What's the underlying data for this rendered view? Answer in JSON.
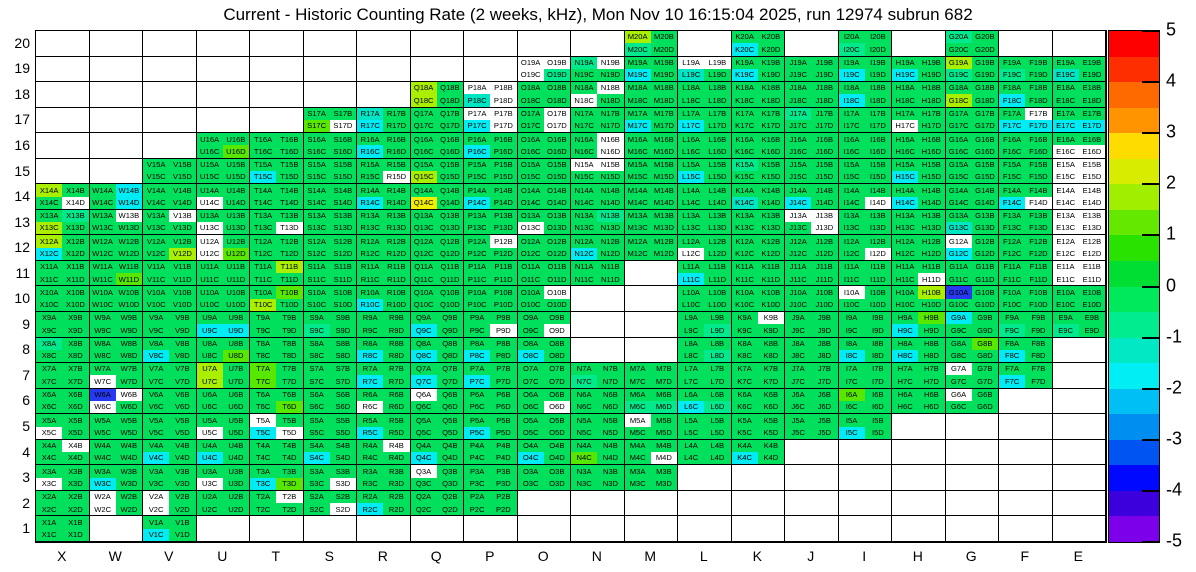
{
  "title": "Current - Historic Counting Rate (2 weeks, kHz), Mon Nov 10 16:15:04 2025, run 12974 subrun 682",
  "quarter_letters": [
    "A",
    "B",
    "C",
    "D"
  ],
  "palette": {
    "g": "#00e05c",
    "s": "#00e98c",
    "t": "#00e6c4",
    "c": "#00ecf4",
    "m": "#58e800",
    "l": "#aaee00",
    "y": "#f2ee00",
    "b": "#2638f0",
    "w": "#ffffff"
  },
  "palette_legend": {
    "g": "normal ~0 (green)",
    "s": "~-0.7 (spring green)",
    "t": "~-1.2 (teal)",
    "c": "~-1.7 (cyan)",
    "m": "~+1.2 (light green)",
    "l": "~+1.8 (yellow-green)",
    "y": "~+2.7 (yellow)",
    "b": "~-3.3 (blue)",
    "w": "no data (white)"
  },
  "colorbar": {
    "max": 5,
    "min": -5,
    "ticks": [
      5,
      4,
      3,
      2,
      1,
      0,
      -1,
      -2,
      -3,
      -4,
      -5
    ],
    "bands": [
      "#ff0000",
      "#ff2e00",
      "#ff6a00",
      "#ff9300",
      "#ffdc00",
      "#d8ec00",
      "#a2ee00",
      "#64e800",
      "#2ae200",
      "#00dd33",
      "#00e95c",
      "#00ec8e",
      "#00e9c4",
      "#00eef4",
      "#00bff2",
      "#008ff0",
      "#0054f2",
      "#0008ff",
      "#3c00dc",
      "#7d00ea"
    ]
  },
  "chart_data": {
    "type": "heatmap",
    "title": "Current - Historic Counting Rate (2 weeks, kHz)",
    "run_info": "Mon Nov 10 16:15:04 2025, run 12974 subrun 682",
    "xlabel": "",
    "ylabel": "",
    "columns": [
      "X",
      "W",
      "V",
      "U",
      "T",
      "S",
      "R",
      "Q",
      "P",
      "O",
      "N",
      "M",
      "L",
      "K",
      "J",
      "I",
      "H",
      "G",
      "F",
      "E"
    ],
    "rows": [
      20,
      19,
      18,
      17,
      16,
      15,
      14,
      13,
      12,
      11,
      10,
      9,
      8,
      7,
      6,
      5,
      4,
      3,
      2,
      1
    ],
    "cell_label_format": "column+row+quarterLetter, quarters A,B top row and C,D bottom row",
    "cells": [
      [
        "",
        "",
        "",
        "",
        "",
        "",
        "",
        "",
        "",
        "",
        "",
        "lgsg",
        "",
        "ggcg",
        "",
        "ggsg",
        "",
        "sggg",
        "",
        ""
      ],
      [
        "",
        "",
        "",
        "",
        "",
        "",
        "",
        "",
        "",
        "wwws",
        "swgg",
        "ggcg",
        "wwtg",
        "ggcg",
        "gggg",
        "ggcg",
        "ggcg",
        "lgsg",
        "ggsg",
        "ggtg"
      ],
      [
        "",
        "",
        "",
        "",
        "",
        "",
        "",
        "lglg",
        "wwtw",
        "gggg",
        "gwwg",
        "gggg",
        "gggg",
        "gggg",
        "gggg",
        "ggcg",
        "gggg",
        "gglg",
        "ggcg",
        "gggg"
      ],
      [
        "",
        "",
        "",
        "",
        "",
        "ggmw",
        "tgcg",
        "gggg",
        "wwcw",
        "gwgw",
        "gggg",
        "ggcg",
        "ggcg",
        "gggg",
        "sggg",
        "gggg",
        "ggwg",
        "gggg",
        "gwcc",
        "ggcc"
      ],
      [
        "",
        "",
        "",
        "gggm",
        "gggg",
        "gggg",
        "ggcg",
        "gggg",
        "ggcg",
        "gggg",
        "gwgw",
        "gggg",
        "gggg",
        "gggg",
        "gggg",
        "gggg",
        "gggg",
        "gggg",
        "gggg",
        "ggww"
      ],
      [
        "",
        "",
        "gggg",
        "gggg",
        "ggcg",
        "gggg",
        "gggw",
        "gglg",
        "gggg",
        "gggg",
        "wwgg",
        "gggg",
        "ggcg",
        "sggg",
        "gggg",
        "gggg",
        "ggcg",
        "gggg",
        "gggg",
        "wwww"
      ],
      [
        "lggw",
        "gcgc",
        "gggg",
        "ggwg",
        "gggg",
        "gggg",
        "ggcg",
        "ggyg",
        "ggcg",
        "gggg",
        "gggg",
        "gggg",
        "gggg",
        "ggtg",
        "ggcg",
        "gggw",
        "ggcg",
        "gggg",
        "ggcw",
        "wwww"
      ],
      [
        "gslg",
        "gwgg",
        "gwgg",
        "ggwg",
        "gggw",
        "gggg",
        "gggg",
        "gggg",
        "gggg",
        "ggwg",
        "gsgg",
        "gggg",
        "gggg",
        "gggg",
        "wwgw",
        "gggg",
        "gggg",
        "ggtg",
        "gggg",
        "wwww"
      ],
      [
        "lgcg",
        "gggg",
        "gggl",
        "wgwm",
        "gggg",
        "gggg",
        "gggg",
        "gggg",
        "gwgg",
        "gggg",
        "ggcg",
        "gggg",
        "ggwg",
        "gggg",
        "gggg",
        "gggw",
        "gggg",
        "wgcg",
        "gggg",
        "wwww"
      ],
      [
        "gggg",
        "gggm",
        "gggg",
        "gggg",
        "glgg",
        "gggg",
        "gggg",
        "gggg",
        "gggg",
        "gggg",
        "gggg",
        "",
        "ggcg",
        "gggg",
        "gggg",
        "gggg",
        "gggw",
        "gggg",
        "gggg",
        "wwww"
      ],
      [
        "gggg",
        "gggg",
        "gggg",
        "gggg",
        "gmlg",
        "gggg",
        "ggcg",
        "gggg",
        "gggg",
        "gwgg",
        "",
        "",
        "gggg",
        "gggg",
        "gggg",
        "wggg",
        "glgg",
        "bggg",
        "gggg",
        "gggg"
      ],
      [
        "gggg",
        "gggg",
        "gggg",
        "ggcc",
        "gggg",
        "ggsg",
        "gggg",
        "ggcg",
        "gggw",
        "gggw",
        "",
        "",
        "gggs",
        "gwgg",
        "gggg",
        "gggg",
        "gmcg",
        "cggg",
        "ggsg",
        "ggsg"
      ],
      [
        "sggg",
        "gggg",
        "ggcg",
        "gggm",
        "gggg",
        "gggg",
        "ggcg",
        "ggcg",
        "ggcg",
        "ggcg",
        "",
        "",
        "gggs",
        "gggg",
        "gggg",
        "ggcg",
        "ggcg",
        "gmgg",
        "ggcg",
        ""
      ],
      [
        "gggg",
        "ggwg",
        "gggg",
        "lglg",
        "mgmg",
        "gggg",
        "ggcg",
        "ggcg",
        "ggcg",
        "gggg",
        "ggsg",
        "gggg",
        "gggg",
        "gggg",
        "gggg",
        "gggg",
        "gggg",
        "wggg",
        "ggcg",
        ""
      ],
      [
        "gggg",
        "bwwg",
        "gggg",
        "gggg",
        "gggm",
        "gggg",
        "ggwg",
        "wggg",
        "gggg",
        "gggw",
        "gggg",
        "ggss",
        "ggcs",
        "gggg",
        "gggg",
        "mggg",
        "gggg",
        "wggg",
        "",
        ""
      ],
      [
        "ggwg",
        "gggg",
        "gggg",
        "ggwg",
        "wgcw",
        "gggg",
        "ggcg",
        "gggg",
        "ggcg",
        "gggg",
        "gggg",
        "wggg",
        "gggg",
        "gggg",
        "gggg",
        "ggcg",
        "",
        "",
        "",
        ""
      ],
      [
        "gwgg",
        "gggg",
        "ggcg",
        "ggcg",
        "gggg",
        "ggcg",
        "gwgg",
        "ggcg",
        "gggg",
        "ggcg",
        "ggmg",
        "gggw",
        "gggg",
        "ggcg",
        "",
        "",
        "",
        "",
        "",
        ""
      ],
      [
        "ggwg",
        "ggcg",
        "gggg",
        "ggwg",
        "ggcm",
        "gggw",
        "gggg",
        "wggg",
        "gggg",
        "gggg",
        "gggg",
        "gggg",
        "",
        "",
        "",
        "",
        "",
        "",
        "",
        ""
      ],
      [
        "gggg",
        "wgwg",
        "wgwg",
        "gggg",
        "gwgg",
        "gggw",
        "ggcg",
        "gggg",
        "gggg",
        "",
        "",
        "",
        "",
        "",
        "",
        "",
        "",
        "",
        "",
        ""
      ],
      [
        "gggg",
        "",
        "ggcg",
        "",
        "",
        "",
        "",
        "",
        "",
        "",
        "",
        "",
        "",
        "",
        "",
        "",
        "",
        "",
        "",
        ""
      ]
    ]
  }
}
